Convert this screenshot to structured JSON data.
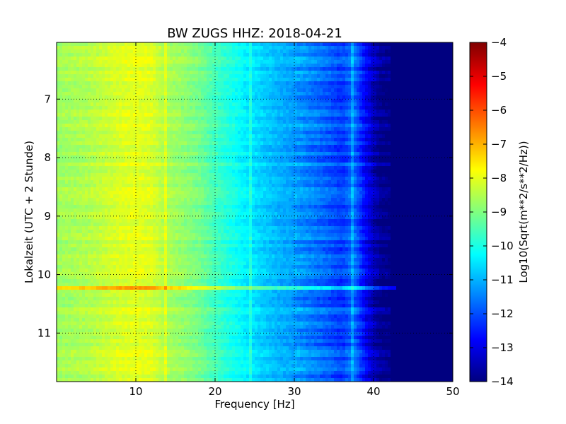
{
  "chart_data": {
    "type": "heatmap",
    "title": "BW ZUGS HHZ: 2018-04-21",
    "xlabel": "Frequency [Hz]",
    "ylabel": "Lokalzeit (UTC + 2 Stunde)",
    "xlim": [
      0,
      50
    ],
    "ylim": [
      6.03,
      11.83
    ],
    "y_inverted": true,
    "xticks": [
      10,
      20,
      30,
      40,
      50
    ],
    "yticks": [
      7,
      8,
      9,
      10,
      11
    ],
    "grid": true,
    "colormap": "jet",
    "colorbar": {
      "label": "Log10(Sqrt(m**2/s**2/Hz))",
      "range": [
        -14,
        -4
      ],
      "ticks": [
        -14,
        -13,
        -12,
        -11,
        -10,
        -9,
        -8,
        -7,
        -6,
        -5,
        -4
      ]
    },
    "spectrum_profile": {
      "frequency_hz": [
        0,
        2,
        4,
        6,
        8,
        10,
        12,
        14,
        16,
        18,
        20,
        22,
        24,
        26,
        28,
        30,
        32,
        34,
        36,
        37.5,
        39,
        40,
        41,
        42,
        44,
        46,
        50
      ],
      "log10_amplitude": [
        -8.7,
        -8.6,
        -8.5,
        -8.3,
        -8.1,
        -8.0,
        -8.1,
        -8.6,
        -8.8,
        -9.1,
        -9.6,
        -10.0,
        -10.4,
        -10.7,
        -11.0,
        -11.2,
        -11.5,
        -11.8,
        -12.2,
        -11.6,
        -12.8,
        -13.4,
        -13.9,
        -14.0,
        -14.0,
        -14.0,
        -14.0
      ]
    },
    "notable_features": [
      {
        "type": "time_band",
        "time_h": 10.22,
        "note": "broadband high-amplitude stripe"
      },
      {
        "type": "frequency_line",
        "frequency_hz": 37.3
      },
      {
        "type": "frequency_line",
        "frequency_hz": 24.4
      },
      {
        "type": "frequency_line",
        "frequency_hz": 13.8
      }
    ]
  }
}
